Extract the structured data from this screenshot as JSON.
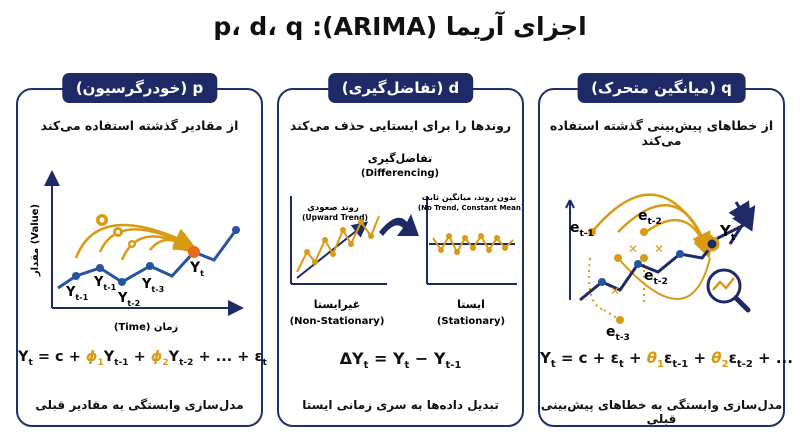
{
  "title": "اجزای آریما (ARIMA): p، d، q",
  "colors": {
    "navy": "#1e2a66",
    "blue": "#2554a3",
    "gold": "#d99a14",
    "orange": "#e36b1c"
  },
  "panels": {
    "q": {
      "header": "q (میانگین متحرک)",
      "subtitle": "از خطاهای پیش‌بینی گذشته استفاده می‌کند",
      "labels": {
        "e1": "e",
        "e1sub": "t-1",
        "e2": "e",
        "e2sub": "t-2",
        "e3": "e",
        "e3sub": "t-3",
        "e4": "e",
        "e4sub": "t-2",
        "yt": "Y",
        "ytsub": "t"
      },
      "icon": "magnifier-trend-icon",
      "formula": {
        "lhs": "Y",
        "lhs_sub": "t",
        "eq": " = c + ε",
        "eps_sub": "t",
        "p1": " + ",
        "th1": "θ",
        "th1_sub": "1",
        "e1": "ε",
        "e1_sub": "t-1",
        "p2": " + ",
        "th2": "θ",
        "th2_sub": "2",
        "e2": "ε",
        "e2_sub": "t-2",
        "tail": " + ..."
      },
      "footer": "مدل‌سازی وابستگی به خطاهای پیش‌بینی قبلی"
    },
    "d": {
      "header": "d (تفاضل‌گیری)",
      "subtitle": "روندها را برای ایستایی حذف می‌کند",
      "diff_title": "تفاضل‌گیری",
      "diff_title_en": "(Differencing)",
      "left_note": "روند صعودی",
      "left_note_en": "(Upward Trend)",
      "right_note": "بدون روند، میانگین ثابت",
      "right_note_en": "(No Trend, Constant Mean)",
      "left_label": "غیرایستا",
      "left_label_en": "(Non-Stationary)",
      "right_label": "ایستا",
      "right_label_en": "(Stationary)",
      "formula": {
        "delta": "Δ",
        "lhs": "Y",
        "lhs_sub": "t",
        "eq": " = ",
        "y": "Y",
        "y_sub": "t",
        "minus": " − ",
        "y2": "Y",
        "y2_sub": "t-1"
      },
      "footer": "تبدیل داده‌ها به سری زمانی ایستا"
    },
    "p": {
      "header": "p (خودرگرسیون)",
      "subtitle": "از مقادیر گذشته استفاده می‌کند",
      "axis_y": "مقدار (Value)",
      "axis_x": "زمان (Time)",
      "labels": {
        "y1": "Y",
        "y1sub": "t-1",
        "y2": "Y",
        "y2sub": "t-1",
        "y3": "Y",
        "y3sub": "t-2",
        "y4": "Y",
        "y4sub": "t-3",
        "yt": "Y",
        "ytsub": "t"
      },
      "icon": "gears-icon",
      "formula": {
        "lhs": "Y",
        "lhs_sub": "t",
        "eq": " = c + ",
        "phi1": "ϕ",
        "phi1_sub": "1",
        "y1": "Y",
        "y1_sub": "t-1",
        "plus": " + ",
        "phi2": "ϕ",
        "phi2_sub": "2",
        "y2": "Y",
        "y2_sub": "t-2",
        "tail": " + ... + ε",
        "tail_sub": "t"
      },
      "footer": "مدل‌سازی وابستگی به مقادیر قبلی"
    }
  }
}
